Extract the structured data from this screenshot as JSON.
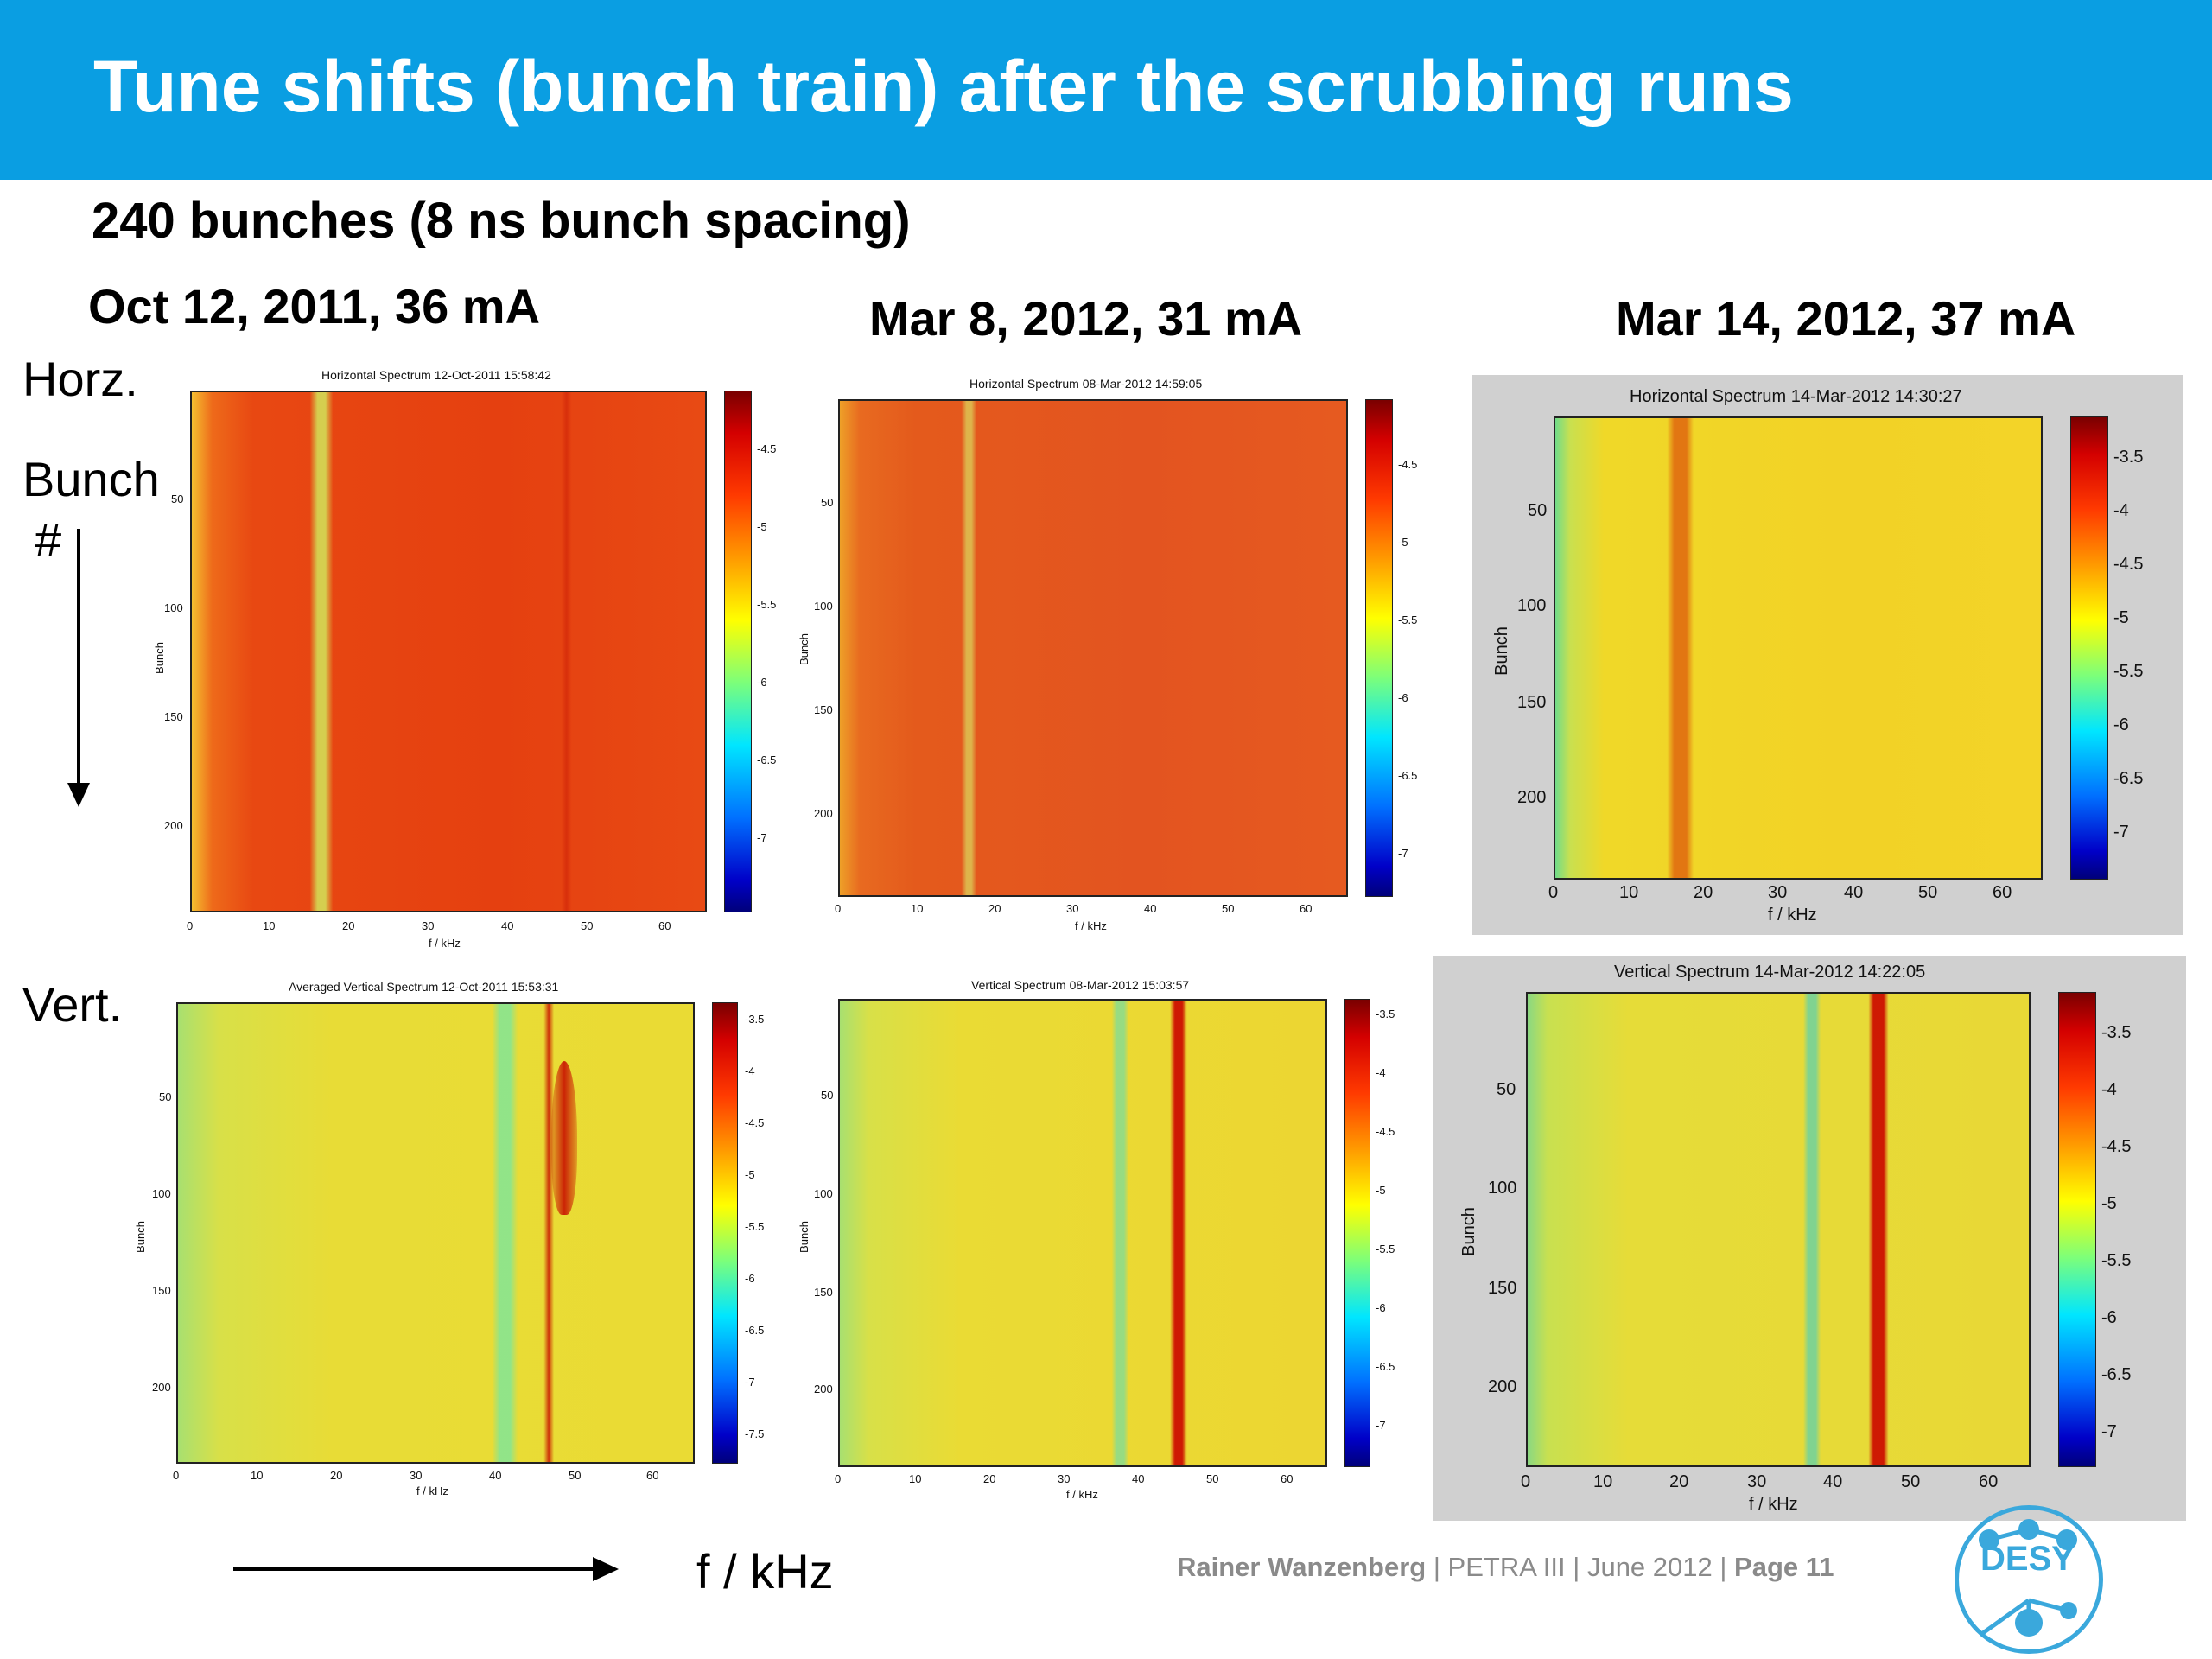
{
  "header": {
    "title": "Tune shifts (bunch train) after the scrubbing runs"
  },
  "subtitle": "240 bunches (8 ns bunch spacing)",
  "columns": [
    "Oct 12, 2011, 36 mA",
    "Mar 8, 2012, 31 mA",
    "Mar 14, 2012, 37 mA"
  ],
  "side_labels": {
    "horz": "Horz.",
    "bunch": "Bunch",
    "hash": "#",
    "vert": "Vert.",
    "fkhz": "f / kHz"
  },
  "colors": {
    "header": "#0a9ee2",
    "footer_text": "#8a8a8a",
    "logo": "#3aa8dc"
  },
  "footer": {
    "author": "Rainer Wanzenberg",
    "sep1": "|",
    "project": "PETRA III",
    "date": "| June 2012 |",
    "page": "Page 11"
  },
  "logo": {
    "text": "DESY"
  },
  "chart_data": [
    {
      "type": "heatmap",
      "title": "Horizontal Spectrum 12-Oct-2011 15:58:42",
      "xlabel": "f / kHz",
      "ylabel": "Bunch",
      "xticks": [
        "0",
        "10",
        "20",
        "30",
        "40",
        "50",
        "60"
      ],
      "yticks": [
        "50",
        "100",
        "150",
        "200"
      ],
      "colorbar_ticks": [
        "-4.5",
        "-5",
        "-5.5",
        "-6",
        "-6.5",
        "-7"
      ],
      "xlim": [
        0,
        65
      ],
      "ylim": [
        0,
        240
      ],
      "background_level": "red",
      "feature": "tune line near 15-19 kHz"
    },
    {
      "type": "heatmap",
      "title": "Horizontal Spectrum 08-Mar-2012 14:59:05",
      "xlabel": "f / kHz",
      "ylabel": "Bunch",
      "xticks": [
        "0",
        "10",
        "20",
        "30",
        "40",
        "50",
        "60"
      ],
      "yticks": [
        "50",
        "100",
        "150",
        "200"
      ],
      "colorbar_ticks": [
        "-4.5",
        "-5",
        "-5.5",
        "-6",
        "-6.5",
        "-7"
      ],
      "xlim": [
        0,
        65
      ],
      "ylim": [
        0,
        240
      ],
      "background_level": "red",
      "feature": "tune line near 15-18 kHz"
    },
    {
      "type": "heatmap",
      "title": "Horizontal Spectrum 14-Mar-2012 14:30:27",
      "xlabel": "f / kHz",
      "ylabel": "Bunch",
      "xticks": [
        "0",
        "10",
        "20",
        "30",
        "40",
        "50",
        "60"
      ],
      "yticks": [
        "50",
        "100",
        "150",
        "200"
      ],
      "colorbar_ticks": [
        "-3.5",
        "-4",
        "-4.5",
        "-5",
        "-5.5",
        "-6",
        "-6.5",
        "-7"
      ],
      "xlim": [
        0,
        65
      ],
      "ylim": [
        0,
        240
      ],
      "background_level": "yellow",
      "feature": "tune line near 18-19 kHz"
    },
    {
      "type": "heatmap",
      "title": "Averaged Vertical Spectrum 12-Oct-2011 15:53:31",
      "xlabel": "f / kHz",
      "ylabel": "Bunch",
      "xticks": [
        "0",
        "10",
        "20",
        "30",
        "40",
        "50",
        "60"
      ],
      "yticks": [
        "50",
        "100",
        "150",
        "200"
      ],
      "colorbar_ticks": [
        "-3.5",
        "-4",
        "-4.5",
        "-5",
        "-5.5",
        "-6",
        "-6.5",
        "-7",
        "-7.5"
      ],
      "xlim": [
        0,
        65
      ],
      "ylim": [
        0,
        240
      ],
      "background_level": "yellow",
      "feature": "tune line near 46-49 kHz"
    },
    {
      "type": "heatmap",
      "title": "Vertical Spectrum 08-Mar-2012 15:03:57",
      "xlabel": "f / kHz",
      "ylabel": "Bunch",
      "xticks": [
        "0",
        "10",
        "20",
        "30",
        "40",
        "50",
        "60"
      ],
      "yticks": [
        "50",
        "100",
        "150",
        "200"
      ],
      "colorbar_ticks": [
        "-3.5",
        "-4",
        "-4.5",
        "-5",
        "-5.5",
        "-6",
        "-6.5",
        "-7"
      ],
      "xlim": [
        0,
        65
      ],
      "ylim": [
        0,
        240
      ],
      "background_level": "yellow",
      "feature": "tune line near 43-45 kHz"
    },
    {
      "type": "heatmap",
      "title": "Vertical Spectrum 14-Mar-2012 14:22:05",
      "xlabel": "f / kHz",
      "ylabel": "Bunch",
      "xticks": [
        "0",
        "10",
        "20",
        "30",
        "40",
        "50",
        "60"
      ],
      "yticks": [
        "50",
        "100",
        "150",
        "200"
      ],
      "colorbar_ticks": [
        "-3.5",
        "-4",
        "-4.5",
        "-5",
        "-5.5",
        "-6",
        "-6.5",
        "-7"
      ],
      "xlim": [
        0,
        65
      ],
      "ylim": [
        0,
        240
      ],
      "background_level": "yellow",
      "feature": "tune line near 45-46 kHz"
    }
  ]
}
